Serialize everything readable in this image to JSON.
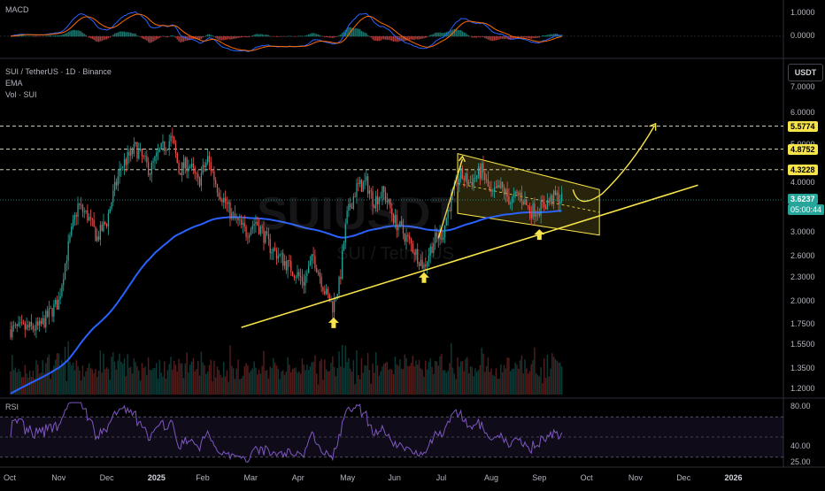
{
  "chart_data": [
    {
      "type": "line",
      "indicator": "MACD",
      "name": "MACD",
      "y_ticks": [
        "1.0000",
        "0.0000"
      ],
      "ylim": [
        -0.8,
        1.4
      ]
    },
    {
      "type": "candlestick",
      "title": "SUI / TetherUS · 1D · Binance",
      "overlay_labels": [
        "EMA",
        "Vol · SUI"
      ],
      "watermark": "SUIUSDT",
      "watermark_sub": "SUI / TetherUS",
      "currency": "USDT",
      "scale": "log",
      "ylim": [
        1.15,
        8.2
      ],
      "y_ticks": [
        "7.0000",
        "6.0000",
        "5.0000",
        "4.0000",
        "3.0000",
        "2.6000",
        "2.3000",
        "2.0000",
        "1.7500",
        "1.5500",
        "1.3500",
        "1.2000"
      ],
      "x_ticks": [
        "Oct",
        "Nov",
        "Dec",
        "2025",
        "Feb",
        "Mar",
        "Apr",
        "May",
        "Jun",
        "Jul",
        "Aug",
        "Sep",
        "Oct",
        "Nov",
        "Dec",
        "2026"
      ],
      "levels": [
        {
          "value": 5.5774,
          "label": "5.5774"
        },
        {
          "value": 4.8752,
          "label": "4.8752"
        },
        {
          "value": 4.3228,
          "label": "4.3228"
        }
      ],
      "current_price": {
        "value": 3.6237,
        "label": "3.6237",
        "countdown": "05:00:44"
      },
      "support_lows": [
        1.88,
        2.45,
        3.15
      ],
      "colors": {
        "up": "#26a69a",
        "down": "#ef5350",
        "ema": "#2962ff",
        "annotation": "#f7e34a"
      }
    },
    {
      "type": "line",
      "indicator": "RSI",
      "name": "RSI",
      "y_ticks": [
        "80.00",
        "40.00",
        "25.00"
      ],
      "ylim": [
        22,
        85
      ],
      "bands": [
        70,
        50,
        30
      ]
    }
  ]
}
